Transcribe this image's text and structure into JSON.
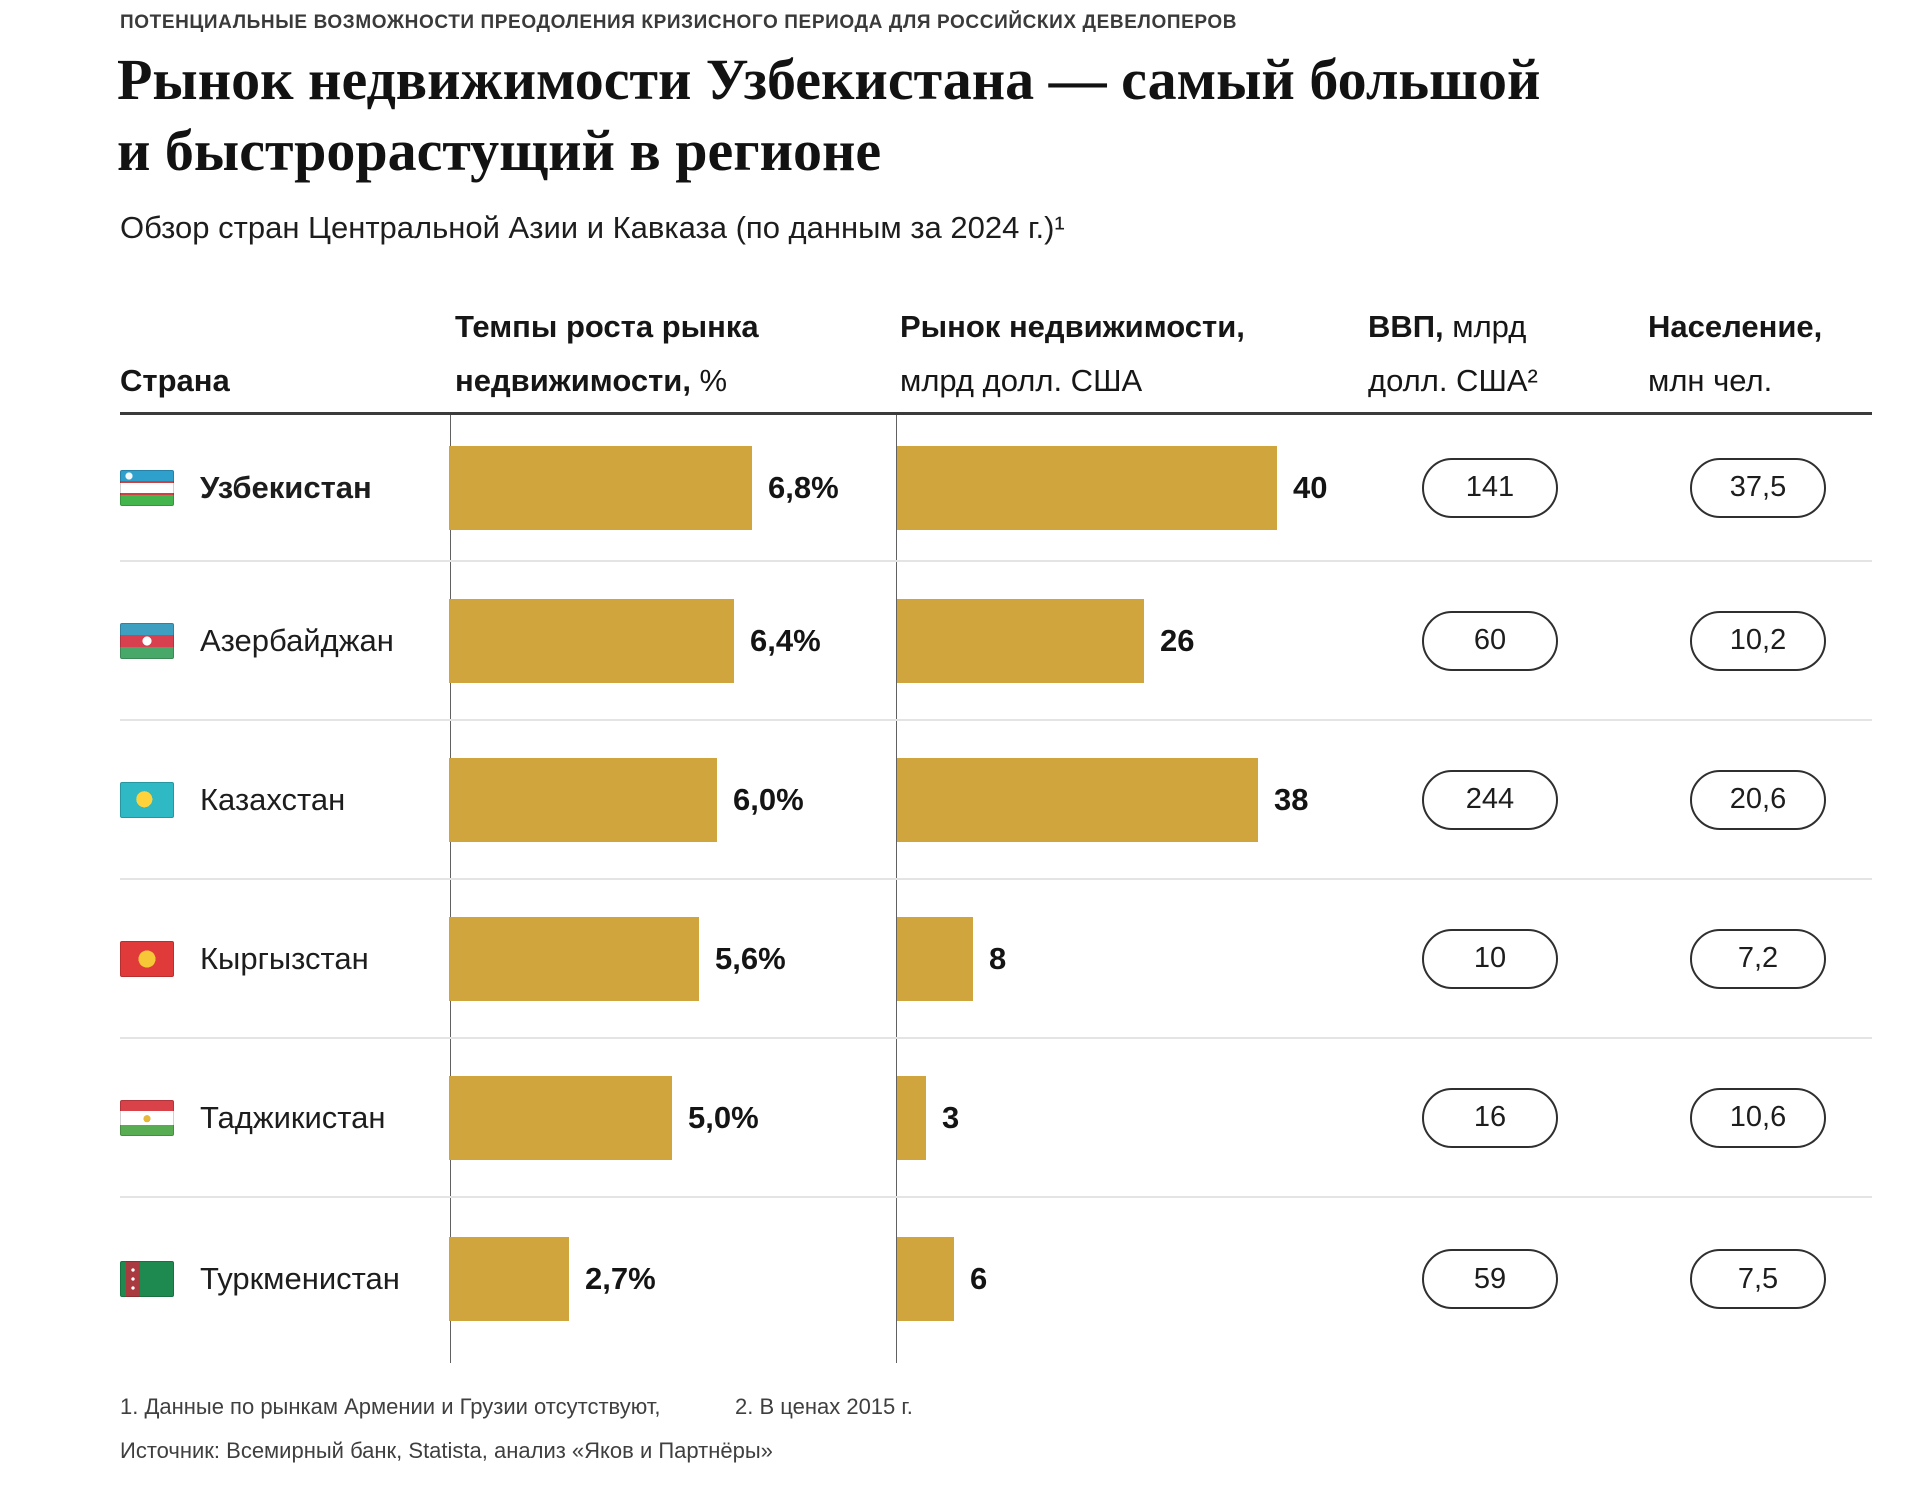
{
  "kicker": "ПОТЕНЦИАЛЬНЫЕ ВОЗМОЖНОСТИ ПРЕОДОЛЕНИЯ КРИЗИСНОГО ПЕРИОДА ДЛЯ РОССИЙСКИХ ДЕВЕЛОПЕРОВ",
  "title": {
    "line1": "Рынок недвижимости Узбекистана — самый большой",
    "line2": "и быстрорастущий в регионе"
  },
  "subtitle": "Обзор стран Центральной Азии и Кавказа (по данным за 2024 г.)¹",
  "table": {
    "header": {
      "country": "Страна",
      "growth_line1": "Темпы роста рынка",
      "growth_line2_bold": "недвижимости,",
      "growth_line2_regular": " %",
      "market_line1": "Рынок недвижимости,",
      "market_line2": "млрд долл. США",
      "gdp_line1_bold": "ВВП,",
      "gdp_line1_regular": " млрд",
      "gdp_line2": "долл. США²",
      "population_line1": "Население,",
      "population_line2": "млн чел."
    },
    "rows": [
      {
        "country": "Узбекистан",
        "flag": "uzbekistan",
        "emphasis": true,
        "growth_pct": 6.8,
        "growth_label": "6,8%",
        "market_bln_usd": 40,
        "market_label": "40",
        "gdp_bln_usd": "141",
        "population_mln": "37,5"
      },
      {
        "country": "Азербайджан",
        "flag": "azerbaijan",
        "emphasis": false,
        "growth_pct": 6.4,
        "growth_label": "6,4%",
        "market_bln_usd": 26,
        "market_label": "26",
        "gdp_bln_usd": "60",
        "population_mln": "10,2"
      },
      {
        "country": "Казахстан",
        "flag": "kazakhstan",
        "emphasis": false,
        "growth_pct": 6.0,
        "growth_label": "6,0%",
        "market_bln_usd": 38,
        "market_label": "38",
        "gdp_bln_usd": "244",
        "population_mln": "20,6"
      },
      {
        "country": "Кыргызстан",
        "flag": "kyrgyzstan",
        "emphasis": false,
        "growth_pct": 5.6,
        "growth_label": "5,6%",
        "market_bln_usd": 8,
        "market_label": "8",
        "gdp_bln_usd": "10",
        "population_mln": "7,2"
      },
      {
        "country": "Таджикистан",
        "flag": "tajikistan",
        "emphasis": false,
        "growth_pct": 5.0,
        "growth_label": "5,0%",
        "market_bln_usd": 3,
        "market_label": "3",
        "gdp_bln_usd": "16",
        "population_mln": "10,6"
      },
      {
        "country": "Туркменистан",
        "flag": "turkmenistan",
        "emphasis": false,
        "growth_pct": 2.7,
        "growth_label": "2,7%",
        "market_bln_usd": 6,
        "market_label": "6",
        "gdp_bln_usd": "59",
        "population_mln": "7,5"
      }
    ]
  },
  "footnotes": {
    "note1": "1. Данные по рынкам Армении и Грузии отсутствуют,",
    "note2": "2. В ценах 2015 г.",
    "source": "Источник: Всемирный банк, Statista, анализ «Яков и Партнёры»"
  },
  "colors": {
    "bar": "#d1a53e",
    "header_rule": "#3b3b3b",
    "separator": "#e4e4e4",
    "axis_line": "#616161",
    "text": "#1d1d1d"
  },
  "chart_data": {
    "type": "bar",
    "orientation": "horizontal",
    "title": "Рынок недвижимости Узбекистана — самый большой и быстрорастущий в регионе",
    "subtitle": "Обзор стран Центральной Азии и Кавказа (по данным за 2024 г.)¹",
    "categories": [
      "Узбекистан",
      "Азербайджан",
      "Казахстан",
      "Кыргызстан",
      "Таджикистан",
      "Туркменистан"
    ],
    "series": [
      {
        "name": "Темпы роста рынка недвижимости, %",
        "display": "bar",
        "values": [
          6.8,
          6.4,
          6.0,
          5.6,
          5.0,
          2.7
        ],
        "labels": [
          "6,8%",
          "6,4%",
          "6,0%",
          "5,6%",
          "5,0%",
          "2,7%"
        ]
      },
      {
        "name": "Рынок недвижимости, млрд долл. США",
        "display": "bar",
        "values": [
          40,
          26,
          38,
          8,
          3,
          6
        ],
        "labels": [
          "40",
          "26",
          "38",
          "8",
          "3",
          "6"
        ]
      },
      {
        "name": "ВВП, млрд долл. США²",
        "display": "badge",
        "values": [
          141,
          60,
          244,
          10,
          16,
          59
        ],
        "labels": [
          "141",
          "60",
          "244",
          "10",
          "16",
          "59"
        ]
      },
      {
        "name": "Население, млн чел.",
        "display": "badge",
        "values": [
          37.5,
          10.2,
          20.6,
          7.2,
          10.6,
          7.5
        ],
        "labels": [
          "37,5",
          "10,2",
          "20,6",
          "7,2",
          "10,6",
          "7,5"
        ]
      }
    ],
    "bar_color": "#d1a53e",
    "legend_position": "none",
    "grid": "off",
    "footnotes": [
      "1. Данные по рынкам Армении и Грузии отсутствуют,",
      "2. В ценах 2015 г."
    ],
    "source": "Источник: Всемирный банк, Statista, анализ «Яков и Партнёры»"
  }
}
